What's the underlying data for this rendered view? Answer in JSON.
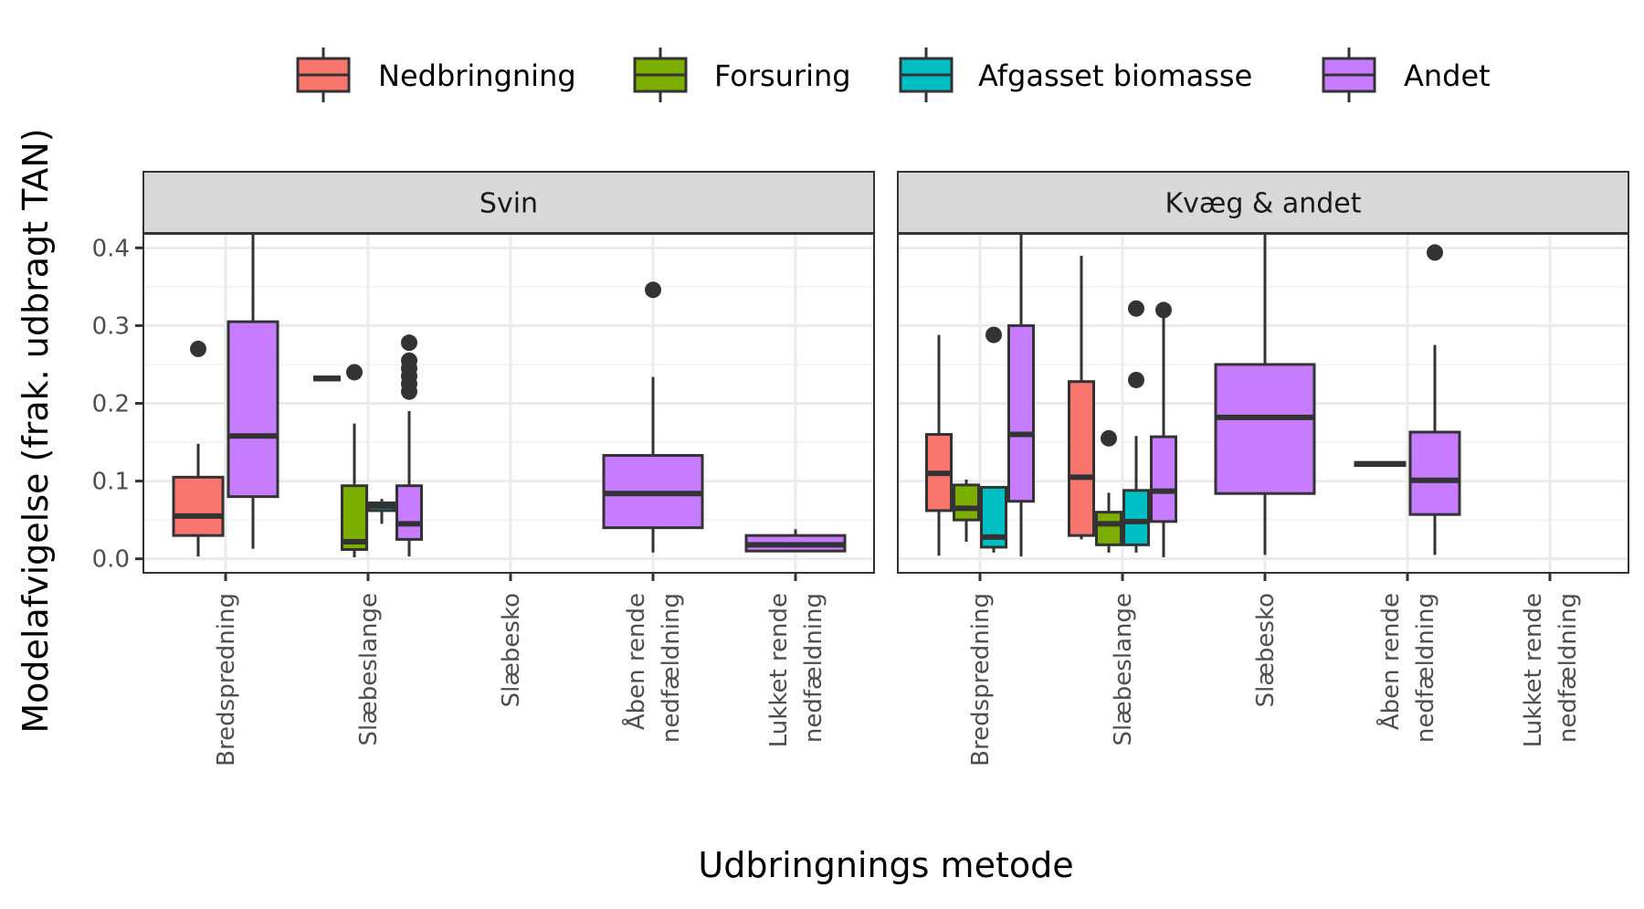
{
  "chart_data": {
    "type": "boxplot",
    "title": "",
    "xlabel": "Udbringnings metode",
    "ylabel": "Modelafvigelse (frak. udbragt TAN)",
    "ylim": [
      -0.018,
      0.418
    ],
    "y_ticks": [
      0.0,
      0.1,
      0.2,
      0.3,
      0.4
    ],
    "y_tick_labels": [
      "0.0",
      "0.1",
      "0.2",
      "0.3",
      "0.4"
    ],
    "grid": true,
    "legend_position": "top",
    "categories": [
      [
        "Bredspredning"
      ],
      [
        "Slæbeslange"
      ],
      [
        "Slæbesko"
      ],
      [
        "Åben rende",
        "nedfældning"
      ],
      [
        "Lukket rende",
        "nedfældning"
      ]
    ],
    "series": [
      {
        "name": "Nedbringning",
        "color": "#F8766D"
      },
      {
        "name": "Forsuring",
        "color": "#7CAE00"
      },
      {
        "name": "Afgasset biomasse",
        "color": "#00BFC4"
      },
      {
        "name": "Andet",
        "color": "#C77CFF"
      }
    ],
    "panels": [
      {
        "label": "Svin",
        "boxes": [
          {
            "cat": 0,
            "series": 0,
            "n_groups": 2,
            "slot": 0,
            "low": 0.003,
            "q1": 0.03,
            "median": 0.055,
            "q3": 0.105,
            "high": 0.148,
            "outliers": [
              0.27
            ]
          },
          {
            "cat": 0,
            "series": 3,
            "n_groups": 2,
            "slot": 1,
            "low": 0.013,
            "q1": 0.08,
            "median": 0.158,
            "q3": 0.305,
            "high": 0.43,
            "outliers": []
          },
          {
            "cat": 1,
            "series": 0,
            "n_groups": 4,
            "slot": 0,
            "low": 0.23,
            "q1": 0.23,
            "median": 0.232,
            "q3": 0.234,
            "high": 0.234,
            "outliers": []
          },
          {
            "cat": 1,
            "series": 1,
            "n_groups": 4,
            "slot": 1,
            "low": 0.002,
            "q1": 0.012,
            "median": 0.022,
            "q3": 0.094,
            "high": 0.174,
            "outliers": [
              0.24
            ]
          },
          {
            "cat": 1,
            "series": 2,
            "n_groups": 4,
            "slot": 2,
            "low": 0.045,
            "q1": 0.062,
            "median": 0.068,
            "q3": 0.072,
            "high": 0.077,
            "outliers": []
          },
          {
            "cat": 1,
            "series": 3,
            "n_groups": 4,
            "slot": 3,
            "low": 0.003,
            "q1": 0.025,
            "median": 0.045,
            "q3": 0.094,
            "high": 0.19,
            "outliers": [
              0.215,
              0.225,
              0.235,
              0.245,
              0.255,
              0.278
            ]
          },
          {
            "cat": 3,
            "series": 3,
            "n_groups": 1,
            "slot": 0,
            "low": 0.008,
            "q1": 0.04,
            "median": 0.084,
            "q3": 0.133,
            "high": 0.234,
            "outliers": [
              0.346
            ]
          },
          {
            "cat": 4,
            "series": 3,
            "n_groups": 1,
            "slot": 0,
            "low": 0.01,
            "q1": 0.01,
            "median": 0.018,
            "q3": 0.03,
            "high": 0.038,
            "outliers": []
          }
        ]
      },
      {
        "label": "Kvæg & andet",
        "boxes": [
          {
            "cat": 0,
            "series": 0,
            "n_groups": 4,
            "slot": 0,
            "low": 0.004,
            "q1": 0.062,
            "median": 0.11,
            "q3": 0.16,
            "high": 0.288,
            "outliers": []
          },
          {
            "cat": 0,
            "series": 1,
            "n_groups": 4,
            "slot": 1,
            "low": 0.022,
            "q1": 0.05,
            "median": 0.065,
            "q3": 0.095,
            "high": 0.102,
            "outliers": []
          },
          {
            "cat": 0,
            "series": 2,
            "n_groups": 4,
            "slot": 2,
            "low": 0.008,
            "q1": 0.015,
            "median": 0.028,
            "q3": 0.092,
            "high": 0.092,
            "outliers": [
              0.288
            ]
          },
          {
            "cat": 0,
            "series": 3,
            "n_groups": 4,
            "slot": 3,
            "low": 0.003,
            "q1": 0.074,
            "median": 0.16,
            "q3": 0.3,
            "high": 0.43,
            "outliers": []
          },
          {
            "cat": 1,
            "series": 0,
            "n_groups": 4,
            "slot": 0,
            "low": 0.025,
            "q1": 0.03,
            "median": 0.105,
            "q3": 0.228,
            "high": 0.39,
            "outliers": []
          },
          {
            "cat": 1,
            "series": 1,
            "n_groups": 4,
            "slot": 1,
            "low": 0.008,
            "q1": 0.018,
            "median": 0.045,
            "q3": 0.06,
            "high": 0.085,
            "outliers": [
              0.155
            ]
          },
          {
            "cat": 1,
            "series": 2,
            "n_groups": 4,
            "slot": 2,
            "low": 0.008,
            "q1": 0.018,
            "median": 0.048,
            "q3": 0.088,
            "high": 0.158,
            "outliers": [
              0.23,
              0.322
            ]
          },
          {
            "cat": 1,
            "series": 3,
            "n_groups": 4,
            "slot": 3,
            "low": 0.002,
            "q1": 0.048,
            "median": 0.087,
            "q3": 0.157,
            "high": 0.31,
            "outliers": [
              0.32
            ]
          },
          {
            "cat": 2,
            "series": 3,
            "n_groups": 1,
            "slot": 0,
            "low": 0.005,
            "q1": 0.084,
            "median": 0.182,
            "q3": 0.25,
            "high": 0.43,
            "outliers": []
          },
          {
            "cat": 3,
            "series": 0,
            "n_groups": 2,
            "slot": 0,
            "low": 0.12,
            "q1": 0.12,
            "median": 0.122,
            "q3": 0.124,
            "high": 0.124,
            "outliers": []
          },
          {
            "cat": 3,
            "series": 3,
            "n_groups": 2,
            "slot": 1,
            "low": 0.005,
            "q1": 0.057,
            "median": 0.101,
            "q3": 0.163,
            "high": 0.275,
            "outliers": [
              0.394
            ]
          }
        ]
      }
    ]
  }
}
